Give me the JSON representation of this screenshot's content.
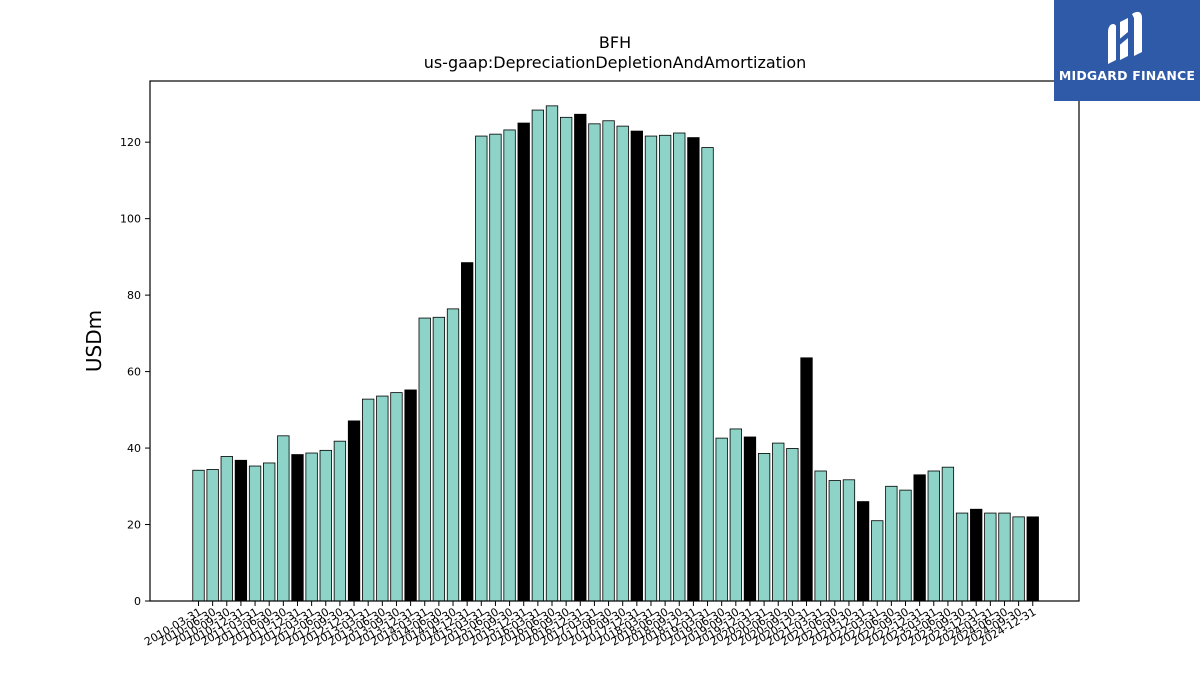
{
  "logo": {
    "text": "MIDGARD FINANCE"
  },
  "colors": {
    "normal": "#8dd3c7",
    "annual": "#000000",
    "edge": "#000000",
    "logo_bg": "#2f5aa8"
  },
  "chart_data": {
    "type": "bar",
    "title": "BFH",
    "subtitle": "us-gaap:DepreciationDepletionAndAmortization",
    "xlabel": "",
    "ylabel": "USDm",
    "ylim": [
      0,
      136
    ],
    "yticks": [
      0,
      20,
      40,
      60,
      80,
      100,
      120
    ],
    "grid": false,
    "categories": [
      "2010-03-31",
      "2010-06-30",
      "2010-09-30",
      "2010-12-31",
      "2011-03-31",
      "2011-06-30",
      "2011-09-30",
      "2011-12-31",
      "2012-03-31",
      "2012-06-30",
      "2012-09-30",
      "2012-12-31",
      "2013-03-31",
      "2013-06-30",
      "2013-09-30",
      "2013-12-31",
      "2014-03-31",
      "2014-06-30",
      "2014-09-30",
      "2014-12-31",
      "2015-03-31",
      "2015-06-30",
      "2015-09-30",
      "2015-12-31",
      "2016-03-31",
      "2016-06-30",
      "2016-09-30",
      "2016-12-31",
      "2017-03-31",
      "2017-06-30",
      "2017-09-30",
      "2017-12-31",
      "2018-03-31",
      "2018-06-30",
      "2018-09-30",
      "2018-12-31",
      "2019-03-31",
      "2019-06-30",
      "2019-09-30",
      "2019-12-31",
      "2020-03-31",
      "2020-06-30",
      "2020-09-30",
      "2020-12-31",
      "2021-03-31",
      "2021-06-30",
      "2021-09-30",
      "2021-12-31",
      "2022-03-31",
      "2022-06-30",
      "2022-09-30",
      "2022-12-31",
      "2023-03-31",
      "2023-06-30",
      "2023-09-30",
      "2023-12-31",
      "2024-03-31",
      "2024-06-30",
      "2024-09-30",
      "2024-12-31"
    ],
    "values": [
      34.2,
      34.4,
      37.8,
      36.8,
      35.3,
      36.1,
      43.2,
      38.3,
      38.7,
      39.4,
      41.8,
      47.1,
      52.8,
      53.6,
      54.5,
      55.2,
      74.0,
      74.2,
      76.4,
      88.5,
      121.6,
      122.1,
      123.2,
      125.0,
      128.4,
      129.5,
      126.5,
      127.3,
      124.8,
      125.6,
      124.2,
      122.9,
      121.6,
      121.8,
      122.4,
      121.2,
      118.6,
      42.6,
      45.0,
      42.9,
      38.6,
      41.3,
      39.9,
      63.6,
      34.0,
      31.5,
      31.7,
      26.0,
      21.0,
      30.0,
      29.0,
      33.0,
      34.0,
      35.0,
      23.0,
      24.0,
      23.0,
      23.0,
      22.0,
      22.0
    ],
    "annual": [
      false,
      false,
      false,
      true,
      false,
      false,
      false,
      true,
      false,
      false,
      false,
      true,
      false,
      false,
      false,
      true,
      false,
      false,
      false,
      true,
      false,
      false,
      false,
      true,
      false,
      false,
      false,
      true,
      false,
      false,
      false,
      true,
      false,
      false,
      false,
      true,
      false,
      false,
      false,
      true,
      false,
      false,
      false,
      true,
      false,
      false,
      false,
      true,
      false,
      false,
      false,
      true,
      false,
      false,
      false,
      true,
      false,
      false,
      false,
      true
    ]
  }
}
